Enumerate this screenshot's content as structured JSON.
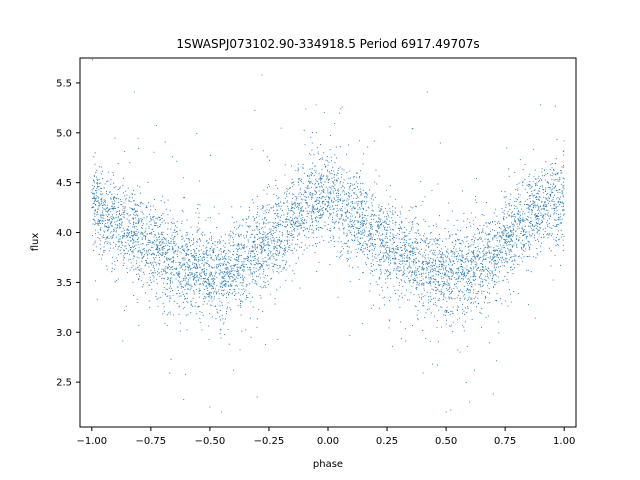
{
  "chart_data": {
    "type": "scatter",
    "title": "1SWASPJ073102.90-334918.5 Period 6917.49707s",
    "xlabel": "phase",
    "ylabel": "flux",
    "xlim": [
      -1.05,
      1.05
    ],
    "ylim": [
      2.05,
      5.75
    ],
    "xticks": [
      -1.0,
      -0.75,
      -0.5,
      -0.25,
      0.0,
      0.25,
      0.5,
      0.75,
      1.0
    ],
    "xtick_labels": [
      "−1.00",
      "−0.75",
      "−0.50",
      "−0.25",
      "0.00",
      "0.25",
      "0.50",
      "0.75",
      "1.00"
    ],
    "yticks": [
      2.5,
      3.0,
      3.5,
      4.0,
      4.5,
      5.0,
      5.5
    ],
    "ytick_labels": [
      "2.5",
      "3.0",
      "3.5",
      "4.0",
      "4.5",
      "5.0",
      "5.5"
    ],
    "grid": false,
    "marker_color": "#1f77b4",
    "series": [
      {
        "phase_range": [
          -1.0,
          1.0
        ],
        "model_mean": {
          "phase": [
            -1.0,
            -0.9,
            -0.8,
            -0.7,
            -0.6,
            -0.5,
            -0.45,
            -0.4,
            -0.3,
            -0.2,
            -0.1,
            0.0,
            0.1,
            0.2,
            0.3,
            0.4,
            0.5,
            0.55,
            0.6,
            0.7,
            0.8,
            0.9,
            1.0
          ],
          "flux": [
            4.3,
            4.1,
            3.95,
            3.8,
            3.68,
            3.58,
            3.57,
            3.62,
            3.8,
            4.0,
            4.25,
            4.38,
            4.18,
            3.98,
            3.8,
            3.65,
            3.57,
            3.57,
            3.62,
            3.8,
            4.05,
            4.25,
            4.32
          ]
        },
        "scatter_sigma": 0.22,
        "n_points": 6000,
        "outliers": [
          [
            -0.82,
            5.41
          ],
          [
            -0.05,
            5.28
          ],
          [
            0.42,
            5.41
          ],
          [
            -0.28,
            5.58
          ],
          [
            0.9,
            5.28
          ],
          [
            -0.45,
            2.2
          ],
          [
            0.5,
            2.2
          ],
          [
            -0.5,
            2.25
          ],
          [
            0.6,
            2.3
          ],
          [
            0.52,
            2.22
          ],
          [
            -0.3,
            2.35
          ],
          [
            0.7,
            2.38
          ],
          [
            -0.4,
            2.62
          ],
          [
            0.62,
            2.62
          ],
          [
            -0.67,
            2.59
          ]
        ]
      }
    ]
  }
}
